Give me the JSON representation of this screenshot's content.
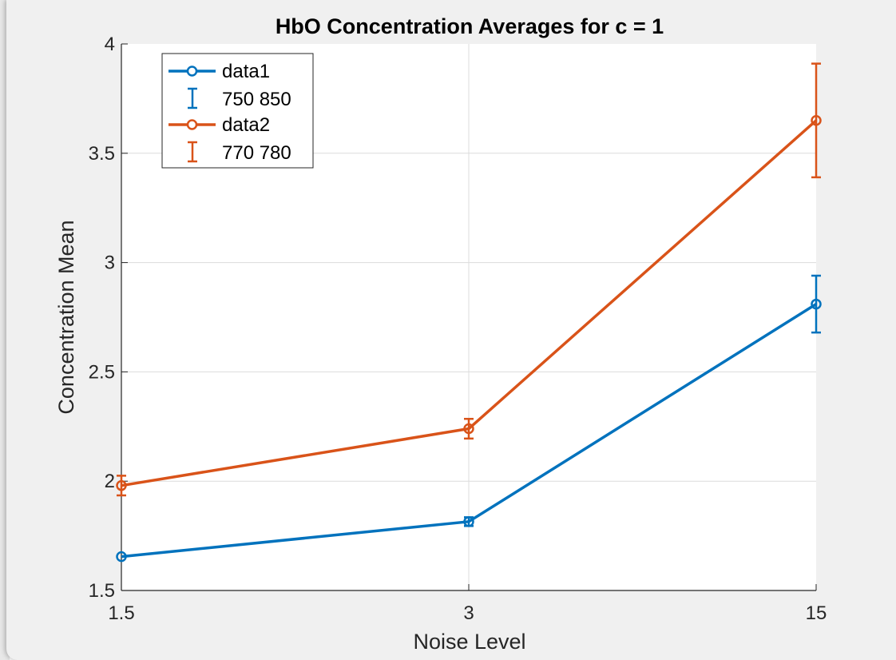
{
  "chart_data": {
    "type": "line",
    "title": "HbO Concentration Averages for c = 1",
    "xlabel": "Noise Level",
    "ylabel": "Concentration Mean",
    "x_categories": [
      "1.5",
      "3",
      "15"
    ],
    "ylim": [
      1.5,
      4
    ],
    "yticks": [
      "1.5",
      "2",
      "2.5",
      "3",
      "3.5",
      "4"
    ],
    "grid": true,
    "legend_position": "top-left",
    "series": [
      {
        "name": "data1",
        "errorbar_name": "750  850",
        "color": "#0072BD",
        "values": [
          1.655,
          1.815,
          2.81
        ],
        "err": [
          0.0,
          0.02,
          0.13
        ]
      },
      {
        "name": "data2",
        "errorbar_name": "770  780",
        "color": "#D95319",
        "values": [
          1.98,
          2.24,
          3.65
        ],
        "err": [
          0.045,
          0.045,
          0.26
        ]
      }
    ]
  }
}
